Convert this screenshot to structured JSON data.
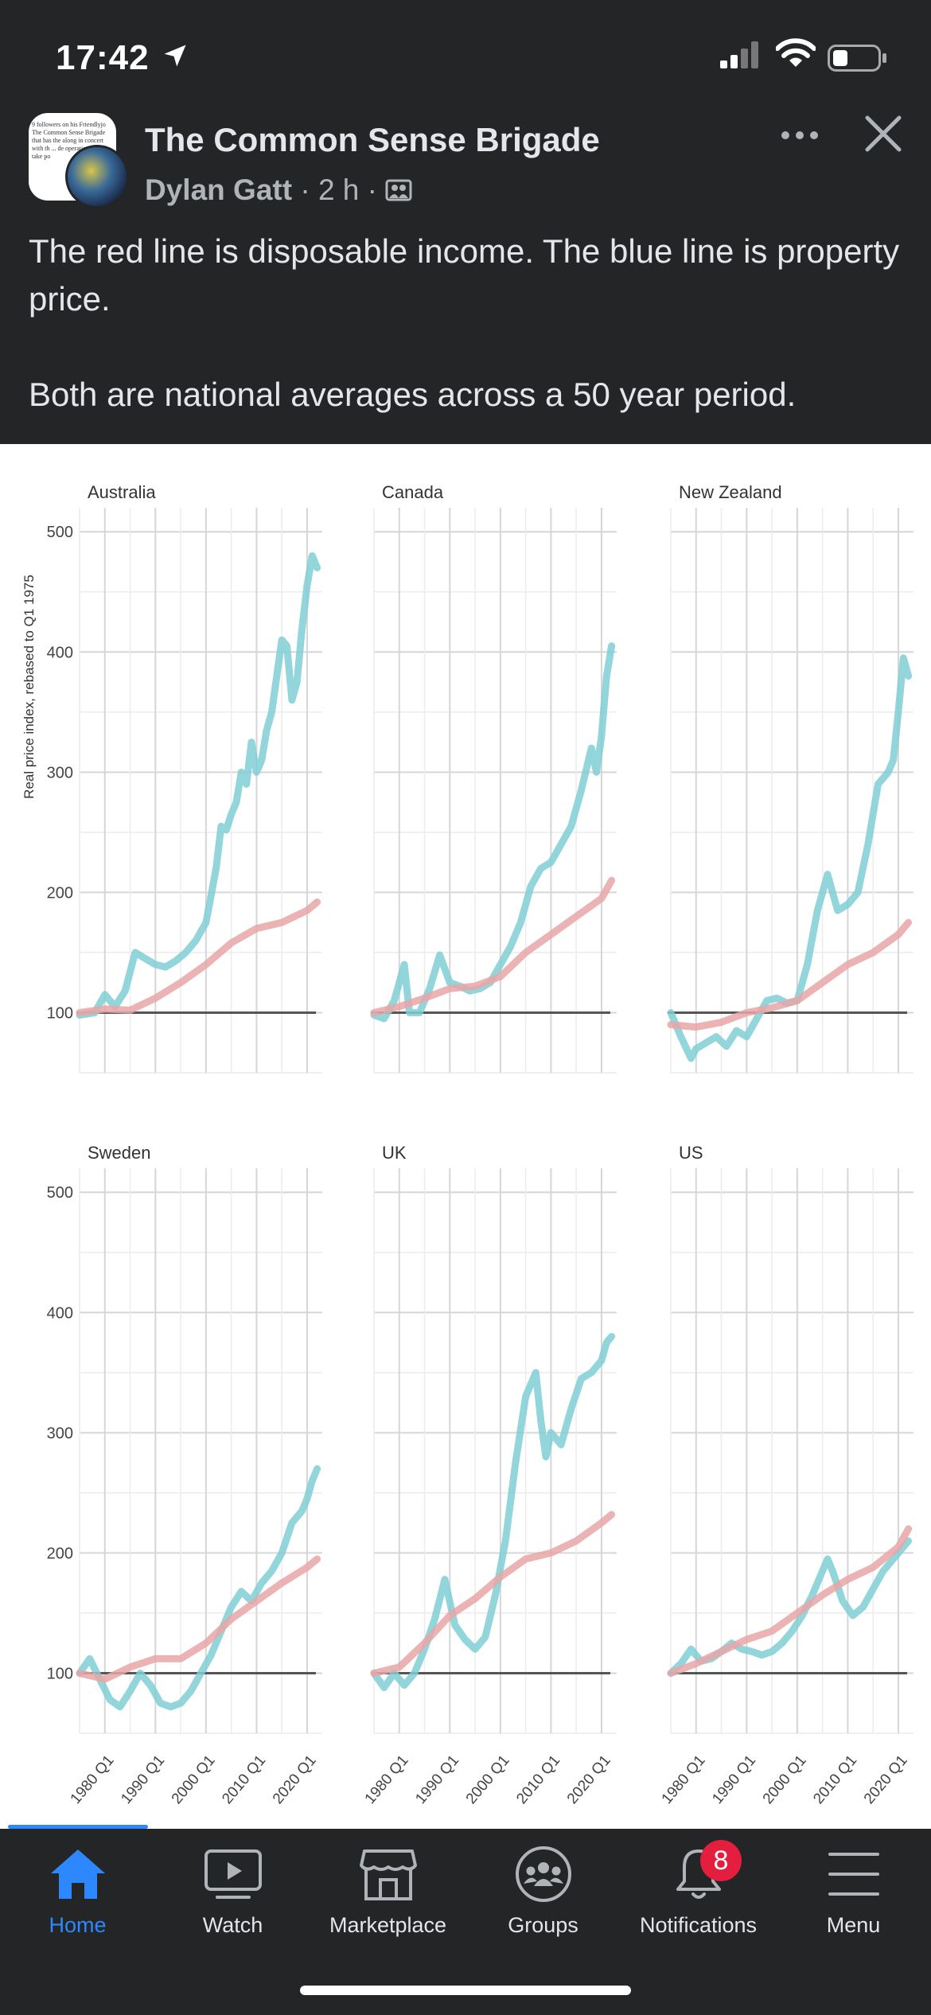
{
  "status": {
    "time": "17:42"
  },
  "post": {
    "group_name": "The Common Sense Brigade",
    "author": "Dylan Gatt",
    "time_ago": "2 h",
    "separator": "·",
    "text_line1": "The red line is disposable income. The blue line is property price.",
    "text_line2": "Both are national averages across a 50 year period."
  },
  "avatar_text": "9 followers on his Friendlyjo The Common Sense Brigade that has the along in concert with th ... de operatio ... ners take po",
  "colors": {
    "property_line": "#7fcfd6",
    "income_line": "#e8a6a6",
    "accent": "#2d88ff",
    "badge": "#e41e3f"
  },
  "chart_data": [
    {
      "type": "line",
      "title": "Australia",
      "ylabel": "Real price index, rebased to Q1 1975",
      "ylim": [
        50,
        520
      ],
      "xlim": [
        1975,
        2023
      ],
      "x_ticks": [
        "1980 Q1",
        "1990 Q1",
        "2000 Q1",
        "2010 Q1",
        "2020 Q1"
      ],
      "y_ticks": [
        100,
        200,
        300,
        400,
        500
      ],
      "series": [
        {
          "x": [
            1975,
            1978,
            1980,
            1982,
            1984,
            1986,
            1988,
            1990,
            1992,
            1994,
            1996,
            1998,
            2000,
            2002,
            2003,
            2004,
            2005,
            2006,
            2007,
            2008,
            2009,
            2010,
            2011,
            2012,
            2013,
            2014,
            2015,
            2016,
            2017,
            2018,
            2019,
            2020,
            2021,
            2022
          ],
          "values": [
            98,
            100,
            115,
            105,
            118,
            150,
            145,
            140,
            138,
            143,
            150,
            160,
            175,
            220,
            255,
            252,
            265,
            275,
            300,
            290,
            325,
            300,
            310,
            335,
            350,
            380,
            410,
            405,
            360,
            375,
            420,
            455,
            480,
            470
          ]
        },
        {
          "x": [
            1975,
            1980,
            1985,
            1990,
            1995,
            2000,
            2005,
            2010,
            2015,
            2020,
            2022
          ],
          "values": [
            100,
            103,
            102,
            112,
            125,
            140,
            158,
            170,
            175,
            185,
            192
          ]
        }
      ]
    },
    {
      "type": "line",
      "title": "Canada",
      "ylim": [
        50,
        520
      ],
      "xlim": [
        1975,
        2023
      ],
      "x_ticks": [
        "1980 Q1",
        "1990 Q1",
        "2000 Q1",
        "2010 Q1",
        "2020 Q1"
      ],
      "y_ticks": [
        100,
        200,
        300,
        400,
        500
      ],
      "series": [
        {
          "x": [
            1975,
            1977,
            1979,
            1981,
            1982,
            1984,
            1986,
            1988,
            1990,
            1992,
            1994,
            1996,
            1998,
            2000,
            2002,
            2004,
            2006,
            2008,
            2010,
            2012,
            2014,
            2016,
            2018,
            2019,
            2020,
            2021,
            2022
          ],
          "values": [
            98,
            95,
            110,
            140,
            100,
            100,
            120,
            148,
            125,
            122,
            118,
            120,
            125,
            140,
            155,
            175,
            205,
            220,
            225,
            240,
            255,
            285,
            320,
            300,
            330,
            380,
            405
          ]
        },
        {
          "x": [
            1975,
            1980,
            1985,
            1990,
            1995,
            2000,
            2005,
            2010,
            2015,
            2020,
            2022
          ],
          "values": [
            100,
            105,
            112,
            120,
            122,
            130,
            150,
            165,
            180,
            195,
            210
          ]
        }
      ]
    },
    {
      "type": "line",
      "title": "New Zealand",
      "ylim": [
        50,
        520
      ],
      "xlim": [
        1975,
        2023
      ],
      "x_ticks": [
        "1980 Q1",
        "1990 Q1",
        "2000 Q1",
        "2010 Q1",
        "2020 Q1"
      ],
      "y_ticks": [
        100,
        200,
        300,
        400,
        500
      ],
      "series": [
        {
          "x": [
            1975,
            1977,
            1979,
            1980,
            1982,
            1984,
            1986,
            1988,
            1990,
            1992,
            1994,
            1996,
            1998,
            2000,
            2002,
            2004,
            2006,
            2007,
            2008,
            2010,
            2012,
            2014,
            2016,
            2018,
            2019,
            2020,
            2021,
            2022
          ],
          "values": [
            100,
            80,
            62,
            70,
            75,
            80,
            72,
            85,
            80,
            95,
            110,
            112,
            108,
            110,
            140,
            185,
            215,
            200,
            185,
            190,
            200,
            240,
            290,
            300,
            310,
            350,
            395,
            380
          ]
        },
        {
          "x": [
            1975,
            1980,
            1985,
            1990,
            1995,
            2000,
            2005,
            2010,
            2015,
            2020,
            2022
          ],
          "values": [
            90,
            88,
            92,
            100,
            104,
            110,
            125,
            140,
            150,
            165,
            175
          ]
        }
      ]
    },
    {
      "type": "line",
      "title": "Sweden",
      "ylim": [
        50,
        520
      ],
      "xlim": [
        1975,
        2023
      ],
      "x_ticks": [
        "1980 Q1",
        "1990 Q1",
        "2000 Q1",
        "2010 Q1",
        "2020 Q1"
      ],
      "y_ticks": [
        100,
        200,
        300,
        400,
        500
      ],
      "series": [
        {
          "x": [
            1975,
            1977,
            1979,
            1981,
            1983,
            1985,
            1987,
            1989,
            1991,
            1993,
            1995,
            1997,
            1999,
            2001,
            2003,
            2005,
            2007,
            2009,
            2011,
            2013,
            2015,
            2017,
            2019,
            2020,
            2021,
            2022
          ],
          "values": [
            100,
            112,
            95,
            78,
            72,
            85,
            100,
            90,
            75,
            72,
            75,
            85,
            100,
            115,
            135,
            155,
            168,
            160,
            175,
            185,
            200,
            225,
            235,
            245,
            260,
            270
          ]
        },
        {
          "x": [
            1975,
            1980,
            1985,
            1990,
            1995,
            2000,
            2005,
            2010,
            2015,
            2020,
            2022
          ],
          "values": [
            100,
            95,
            105,
            112,
            112,
            125,
            145,
            160,
            175,
            188,
            195
          ]
        }
      ]
    },
    {
      "type": "line",
      "title": "UK",
      "ylim": [
        50,
        520
      ],
      "xlim": [
        1975,
        2023
      ],
      "x_ticks": [
        "1980 Q1",
        "1990 Q1",
        "2000 Q1",
        "2010 Q1",
        "2020 Q1"
      ],
      "y_ticks": [
        100,
        200,
        300,
        400,
        500
      ],
      "series": [
        {
          "x": [
            1975,
            1977,
            1979,
            1981,
            1983,
            1985,
            1987,
            1989,
            1991,
            1993,
            1995,
            1997,
            1999,
            2001,
            2003,
            2005,
            2007,
            2008,
            2009,
            2010,
            2012,
            2014,
            2016,
            2018,
            2020,
            2021,
            2022
          ],
          "values": [
            100,
            88,
            100,
            90,
            100,
            120,
            145,
            178,
            140,
            128,
            120,
            130,
            165,
            210,
            275,
            330,
            350,
            310,
            280,
            300,
            290,
            320,
            345,
            350,
            360,
            375,
            380
          ]
        },
        {
          "x": [
            1975,
            1980,
            1985,
            1990,
            1995,
            2000,
            2005,
            2010,
            2015,
            2020,
            2022
          ],
          "values": [
            100,
            105,
            125,
            148,
            162,
            180,
            195,
            200,
            210,
            225,
            232
          ]
        }
      ]
    },
    {
      "type": "line",
      "title": "US",
      "ylim": [
        50,
        520
      ],
      "xlim": [
        1975,
        2023
      ],
      "x_ticks": [
        "1980 Q1",
        "1990 Q1",
        "2000 Q1",
        "2010 Q1",
        "2020 Q1"
      ],
      "y_ticks": [
        100,
        200,
        300,
        400,
        500
      ],
      "series": [
        {
          "x": [
            1975,
            1977,
            1979,
            1981,
            1983,
            1985,
            1987,
            1989,
            1991,
            1993,
            1995,
            1997,
            1999,
            2001,
            2003,
            2005,
            2006,
            2007,
            2009,
            2011,
            2013,
            2015,
            2017,
            2019,
            2021,
            2022
          ],
          "values": [
            100,
            108,
            120,
            110,
            112,
            118,
            125,
            120,
            118,
            115,
            118,
            125,
            135,
            148,
            165,
            185,
            195,
            185,
            160,
            148,
            155,
            170,
            185,
            195,
            205,
            210
          ]
        },
        {
          "x": [
            1975,
            1980,
            1985,
            1990,
            1995,
            2000,
            2005,
            2010,
            2015,
            2020,
            2022
          ],
          "values": [
            100,
            108,
            118,
            128,
            135,
            150,
            165,
            178,
            188,
            205,
            220
          ]
        }
      ]
    }
  ],
  "tabs": [
    {
      "label": "Home",
      "icon": "home-icon"
    },
    {
      "label": "Watch",
      "icon": "watch-icon"
    },
    {
      "label": "Marketplace",
      "icon": "marketplace-icon"
    },
    {
      "label": "Groups",
      "icon": "groups-icon"
    },
    {
      "label": "Notifications",
      "icon": "bell-icon"
    },
    {
      "label": "Menu",
      "icon": "menu-icon"
    }
  ],
  "notifications_badge": "8"
}
